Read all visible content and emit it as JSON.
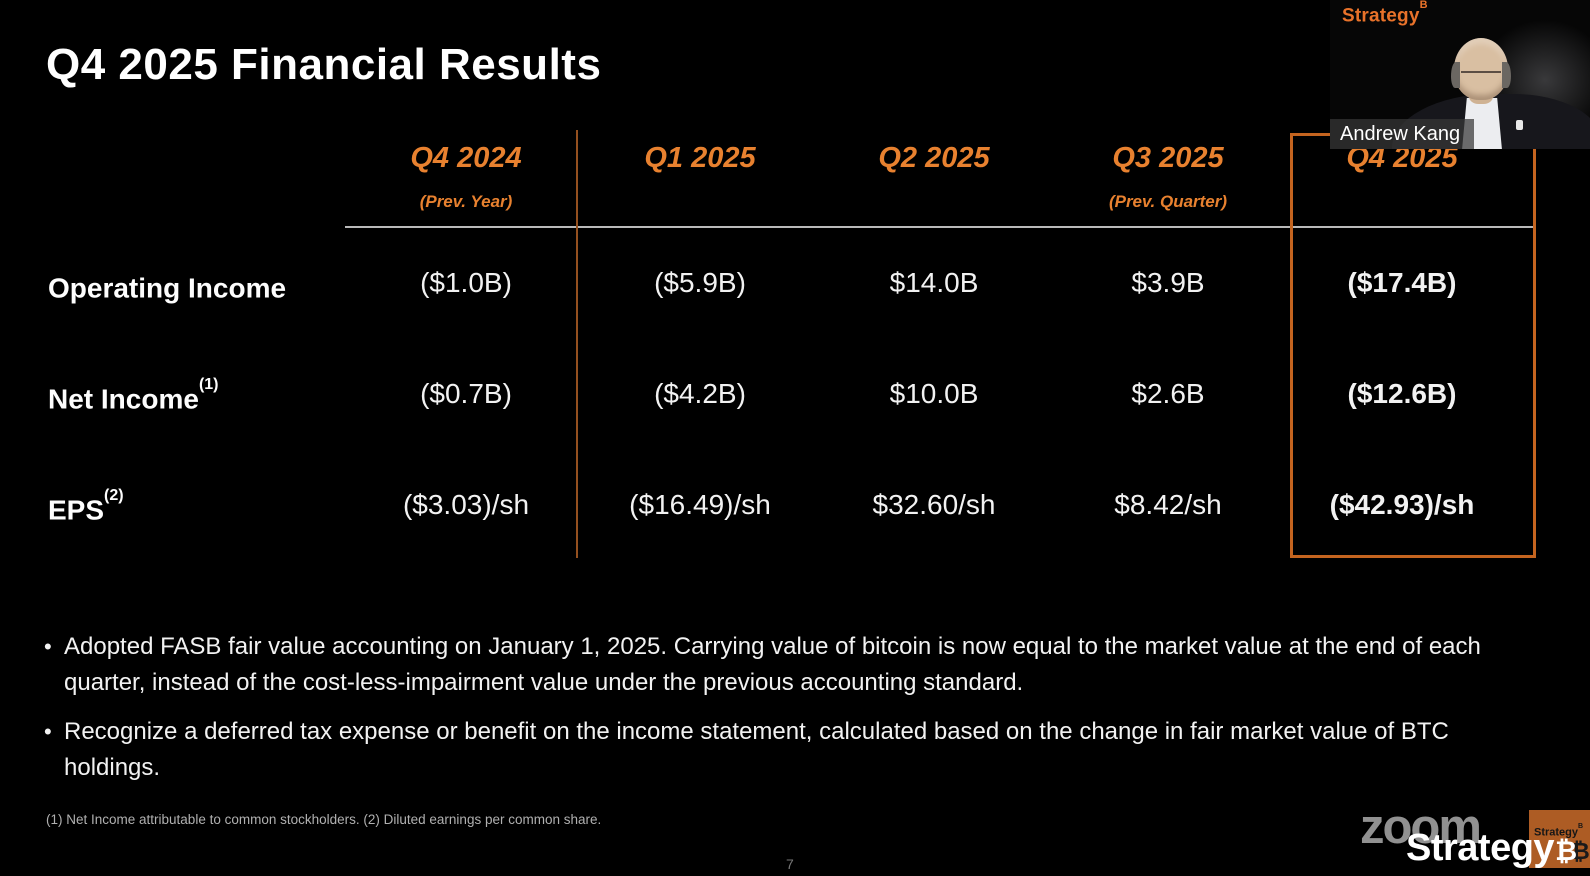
{
  "slide": {
    "title": "Q4 2025 Financial Results",
    "table": {
      "columns": [
        {
          "label": "Q4 2024",
          "sublabel": "(Prev. Year)"
        },
        {
          "label": "Q1 2025",
          "sublabel": ""
        },
        {
          "label": "Q2 2025",
          "sublabel": ""
        },
        {
          "label": "Q3 2025",
          "sublabel": "(Prev. Quarter)"
        },
        {
          "label": "Q4 2025",
          "sublabel": "",
          "highlighted": true
        }
      ],
      "rows": [
        {
          "label": "Operating Income",
          "sup": "",
          "values": [
            "($1.0B)",
            "($5.9B)",
            "$14.0B",
            "$3.9B",
            "($17.4B)"
          ]
        },
        {
          "label": "Net Income",
          "sup": "(1)",
          "values": [
            "($0.7B)",
            "($4.2B)",
            "$10.0B",
            "$2.6B",
            "($12.6B)"
          ]
        },
        {
          "label": "EPS",
          "sup": "(2)",
          "values": [
            "($3.03)/sh",
            "($16.49)/sh",
            "$32.60/sh",
            "$8.42/sh",
            "($42.93)/sh"
          ]
        }
      ]
    },
    "bullets": [
      "Adopted FASB fair value accounting on January 1, 2025. Carrying value of bitcoin is now equal to the market value at the end of each quarter, instead of the cost-less-impairment value under the previous accounting standard.",
      "Recognize a deferred tax expense or benefit on the income statement, calculated based on the change in fair market value of BTC holdings."
    ],
    "footnote": "(1) Net Income attributable to common stockholders. (2) Diluted earnings per common share.",
    "page_number": "7"
  },
  "video_overlay": {
    "speaker_name": "Andrew Kang",
    "logo_text": "Strategy",
    "logo_superscript": "B"
  },
  "watermarks": {
    "zoom_text": "zoom",
    "strategy_text": "Strategy",
    "strategy_symbol": "₿",
    "badge_text": "Strategy",
    "badge_superscript": "B",
    "badge_symbol": "₿"
  },
  "colors": {
    "background": "#000000",
    "accent_orange": "#e8812f",
    "box_border_orange": "#c4641f",
    "badge_orange": "#ad5c24",
    "text_white": "#f2f2f2",
    "muted_grey": "#b0b0b0"
  }
}
